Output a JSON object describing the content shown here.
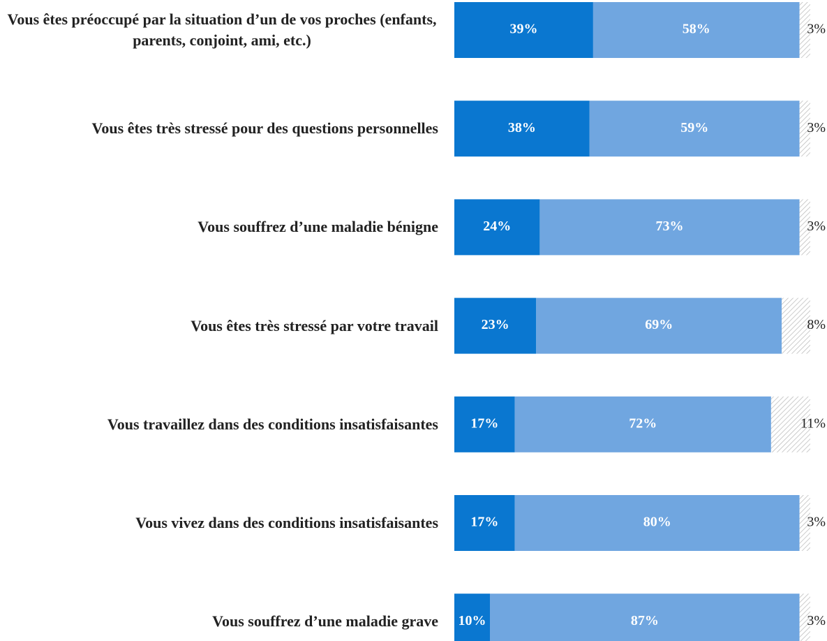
{
  "chart_data": {
    "type": "stacked-bar",
    "orientation": "horizontal",
    "categories": [
      "Vous êtes préoccupé par la situation d’un de vos proches (enfants, parents, conjoint, ami, etc.)",
      "Vous êtes très stressé pour des questions personnelles",
      "Vous souffrez d’une maladie bénigne",
      "Vous êtes très stressé par votre travail",
      "Vous travaillez dans des conditions insatisfaisantes",
      "Vous vivez dans des conditions insatisfaisantes",
      "Vous souffrez d’une maladie grave"
    ],
    "xlim": [
      0,
      100
    ],
    "series": [
      {
        "color": "#0a77d0",
        "values": [
          39,
          38,
          24,
          23,
          17,
          17,
          10
        ],
        "value_labels": [
          "39%",
          "38%",
          "24%",
          "23%",
          "17%",
          "17%",
          "10%"
        ]
      },
      {
        "color": "#70a6e0",
        "values": [
          58,
          59,
          73,
          69,
          72,
          80,
          87
        ],
        "value_labels": [
          "58%",
          "59%",
          "73%",
          "69%",
          "72%",
          "80%",
          "87%"
        ]
      },
      {
        "color": "hatched",
        "values": [
          3,
          3,
          3,
          8,
          11,
          3,
          3
        ],
        "value_labels": [
          "3%",
          "3%",
          "3%",
          "8%",
          "11%",
          "3%",
          "3%"
        ]
      }
    ]
  }
}
